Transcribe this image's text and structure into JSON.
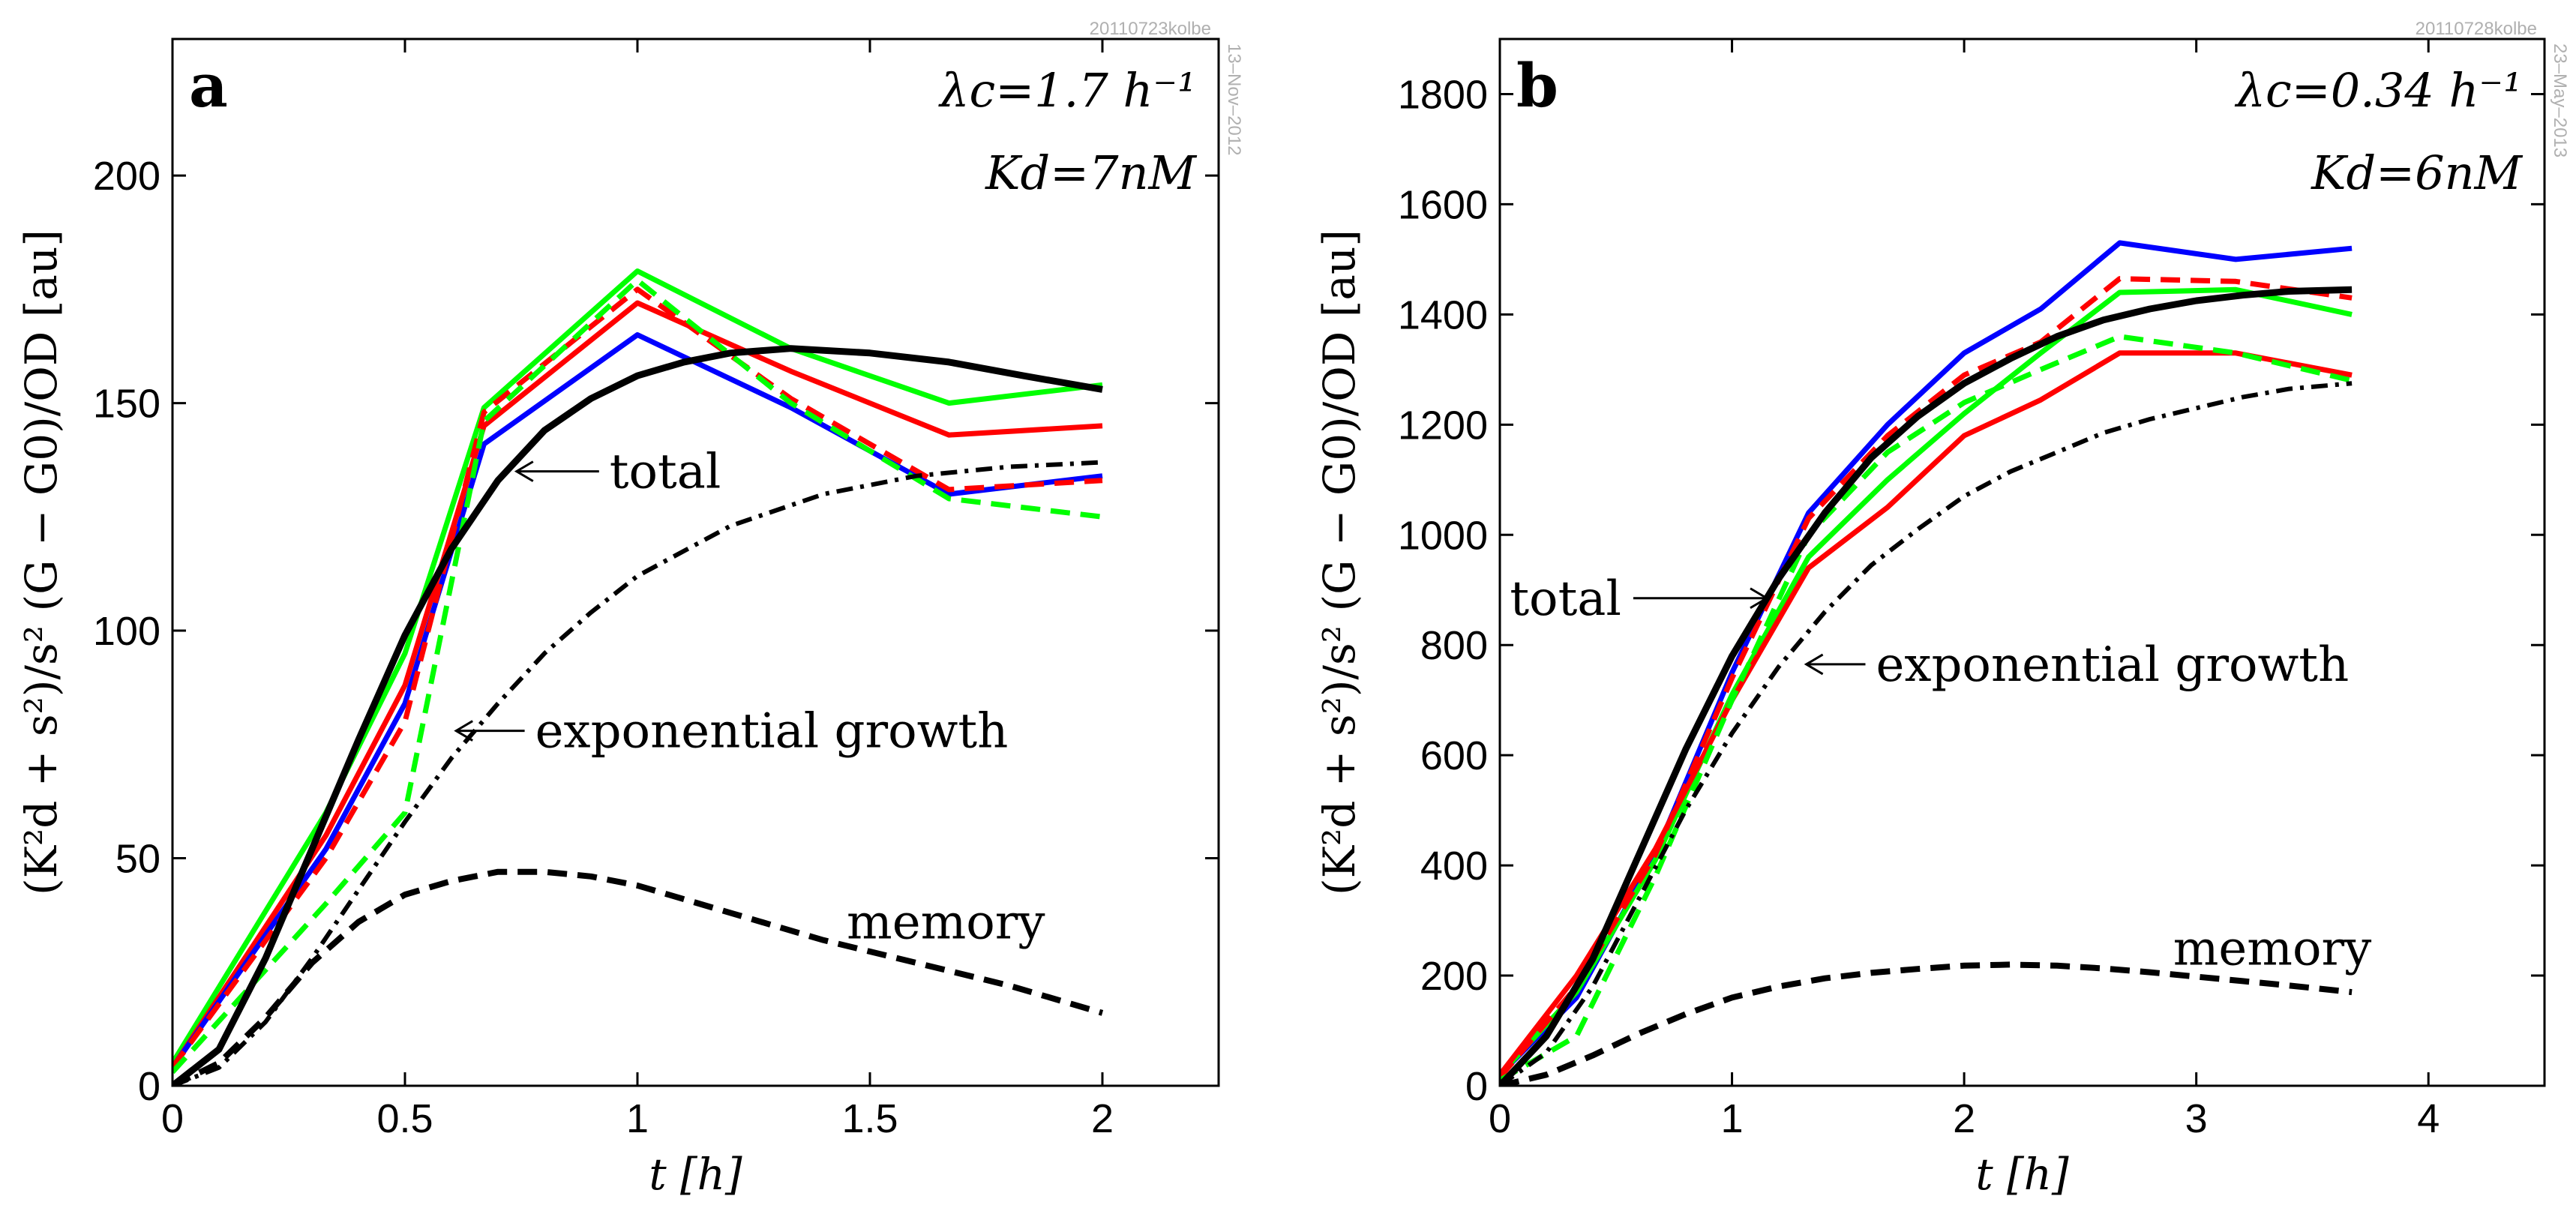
{
  "chart_data": [
    {
      "type": "line",
      "panel_label": "a",
      "params": {
        "lambda_c": "λc=1.7 h⁻¹",
        "Kd": "Kd=7nM"
      },
      "stamp_top": "20110723kolbe",
      "stamp_side": "13–Nov–2012",
      "xlabel": "t [h]",
      "ylabel": "(K²d + s²)/s²   (G − G0)/OD [au]",
      "xlim": [
        0,
        2.25
      ],
      "ylim": [
        0,
        230
      ],
      "xticks": [
        0,
        0.5,
        1,
        1.5,
        2
      ],
      "xtick_labels": [
        "0",
        "0.5",
        "1",
        "1.5",
        "2"
      ],
      "yticks": [
        0,
        50,
        100,
        150,
        200
      ],
      "ytick_labels": [
        "0",
        "50",
        "100",
        "150",
        "200"
      ],
      "series": [
        {
          "color": "#00ff00",
          "dash": "solid",
          "width": 7,
          "x": [
            0,
            0.33,
            0.5,
            0.67,
            1.0,
            1.33,
            1.67,
            2.0
          ],
          "y": [
            5,
            60,
            95,
            149,
            179,
            162,
            150,
            154
          ]
        },
        {
          "color": "#ff0000",
          "dash": "solid",
          "width": 7,
          "x": [
            0,
            0.33,
            0.5,
            0.67,
            1.0,
            1.33,
            1.67,
            2.0
          ],
          "y": [
            4,
            55,
            88,
            145,
            172,
            157,
            143,
            145
          ]
        },
        {
          "color": "#0000ff",
          "dash": "solid",
          "width": 7,
          "x": [
            0,
            0.33,
            0.5,
            0.67,
            1.0,
            1.33,
            1.67,
            2.0
          ],
          "y": [
            4,
            52,
            84,
            141,
            165,
            149,
            130,
            134
          ]
        },
        {
          "color": "#ff0000",
          "dash": "dashed",
          "width": 7,
          "x": [
            0,
            0.33,
            0.5,
            0.67,
            1.0,
            1.33,
            1.67,
            2.0
          ],
          "y": [
            4,
            50,
            80,
            148,
            175,
            151,
            131,
            133
          ]
        },
        {
          "color": "#00ff00",
          "dash": "dashed",
          "width": 7,
          "x": [
            0,
            0.33,
            0.5,
            0.67,
            1.0,
            1.33,
            1.67,
            2.0
          ],
          "y": [
            3,
            40,
            60,
            146,
            177,
            150,
            129,
            125
          ]
        },
        {
          "color": "#000000",
          "dash": "solid",
          "width": 9,
          "x": [
            0,
            0.1,
            0.2,
            0.3,
            0.4,
            0.5,
            0.6,
            0.7,
            0.8,
            0.9,
            1.0,
            1.1,
            1.2,
            1.33,
            1.5,
            1.67,
            1.83,
            2.0
          ],
          "y": [
            0,
            8,
            28,
            52,
            76,
            99,
            118,
            133,
            144,
            151,
            156,
            159,
            161,
            162,
            161,
            159,
            156,
            153
          ]
        },
        {
          "color": "#000000",
          "dash": "dashdot",
          "width": 6,
          "x": [
            0,
            0.1,
            0.2,
            0.3,
            0.4,
            0.5,
            0.6,
            0.7,
            0.8,
            0.9,
            1.0,
            1.2,
            1.4,
            1.6,
            1.8,
            2.0
          ],
          "y": [
            0,
            4,
            14,
            28,
            43,
            58,
            72,
            84,
            95,
            104,
            112,
            123,
            130,
            134,
            136,
            137
          ]
        },
        {
          "color": "#000000",
          "dash": "dashed",
          "width": 8,
          "x": [
            0,
            0.1,
            0.2,
            0.3,
            0.4,
            0.5,
            0.6,
            0.7,
            0.8,
            0.9,
            1.0,
            1.2,
            1.4,
            1.6,
            1.8,
            2.0
          ],
          "y": [
            0,
            5,
            15,
            27,
            36,
            42,
            45,
            47,
            47,
            46,
            44,
            38,
            32,
            27,
            22,
            16
          ]
        }
      ],
      "annotations": [
        {
          "text": "total",
          "x": 0.94,
          "y": 135,
          "arrow_to": [
            0.74,
            135
          ]
        },
        {
          "text": "exponential growth",
          "x": 0.78,
          "y": 78,
          "arrow_to": [
            0.61,
            78
          ]
        },
        {
          "text": "memory",
          "x": 1.45,
          "y": 36
        }
      ]
    },
    {
      "type": "line",
      "panel_label": "b",
      "params": {
        "lambda_c": "λc=0.34 h⁻¹",
        "Kd": "Kd=6nM"
      },
      "stamp_top": "20110728kolbe",
      "stamp_side": "23–May–2013",
      "xlabel": "t [h]",
      "ylabel": "(K²d + s²)/s²   (G − G0)/OD [au]",
      "xlim": [
        0,
        4.5
      ],
      "ylim": [
        0,
        1900
      ],
      "xticks": [
        0,
        1,
        2,
        3,
        4
      ],
      "xtick_labels": [
        "0",
        "1",
        "2",
        "3",
        "4"
      ],
      "yticks": [
        0,
        200,
        400,
        600,
        800,
        1000,
        1200,
        1400,
        1600,
        1800
      ],
      "ytick_labels": [
        "0",
        "200",
        "400",
        "600",
        "800",
        "1000",
        "1200",
        "1400",
        "1600",
        "1800"
      ],
      "series": [
        {
          "color": "#0000ff",
          "dash": "solid",
          "width": 7,
          "x": [
            0,
            0.33,
            0.67,
            1.0,
            1.33,
            1.67,
            2.0,
            2.33,
            2.67,
            3.17,
            3.67
          ],
          "y": [
            20,
            160,
            420,
            750,
            1040,
            1200,
            1330,
            1410,
            1530,
            1500,
            1520
          ]
        },
        {
          "color": "#00ff00",
          "dash": "solid",
          "width": 7,
          "x": [
            0,
            0.33,
            0.67,
            1.0,
            1.33,
            1.67,
            2.0,
            2.33,
            2.67,
            3.17,
            3.67
          ],
          "y": [
            20,
            170,
            410,
            710,
            960,
            1100,
            1220,
            1330,
            1440,
            1445,
            1400
          ]
        },
        {
          "color": "#ff0000",
          "dash": "solid",
          "width": 7,
          "x": [
            0,
            0.33,
            0.67,
            1.0,
            1.33,
            1.67,
            2.0,
            2.33,
            2.67,
            3.17,
            3.67
          ],
          "y": [
            20,
            200,
            430,
            700,
            940,
            1050,
            1180,
            1245,
            1330,
            1330,
            1290
          ]
        },
        {
          "color": "#ff0000",
          "dash": "dashed",
          "width": 7,
          "x": [
            0,
            0.33,
            0.67,
            1.0,
            1.33,
            1.67,
            2.0,
            2.33,
            2.67,
            3.17,
            3.67
          ],
          "y": [
            15,
            180,
            420,
            740,
            1030,
            1180,
            1290,
            1350,
            1465,
            1460,
            1430
          ]
        },
        {
          "color": "#00ff00",
          "dash": "dashed",
          "width": 7,
          "x": [
            0,
            0.33,
            0.67,
            1.0,
            1.33,
            1.67,
            2.0,
            2.33,
            2.67,
            3.17,
            3.67
          ],
          "y": [
            10,
            90,
            380,
            700,
            1000,
            1150,
            1240,
            1300,
            1360,
            1330,
            1280
          ]
        },
        {
          "color": "#000000",
          "dash": "solid",
          "width": 9,
          "x": [
            0,
            0.2,
            0.4,
            0.6,
            0.8,
            1.0,
            1.2,
            1.4,
            1.6,
            1.8,
            2.0,
            2.2,
            2.4,
            2.6,
            2.8,
            3.0,
            3.2,
            3.4,
            3.67
          ],
          "y": [
            0,
            90,
            230,
            420,
            610,
            780,
            920,
            1040,
            1140,
            1215,
            1275,
            1320,
            1360,
            1390,
            1410,
            1425,
            1435,
            1442,
            1445
          ]
        },
        {
          "color": "#000000",
          "dash": "dashdot",
          "width": 6,
          "x": [
            0,
            0.2,
            0.4,
            0.6,
            0.8,
            1.0,
            1.2,
            1.4,
            1.6,
            1.8,
            2.0,
            2.2,
            2.4,
            2.6,
            2.8,
            3.0,
            3.2,
            3.4,
            3.67
          ],
          "y": [
            0,
            60,
            180,
            340,
            500,
            640,
            760,
            860,
            945,
            1010,
            1070,
            1115,
            1150,
            1185,
            1210,
            1230,
            1250,
            1265,
            1275
          ]
        },
        {
          "color": "#000000",
          "dash": "dashed",
          "width": 8,
          "x": [
            0,
            0.2,
            0.4,
            0.6,
            0.8,
            1.0,
            1.2,
            1.4,
            1.6,
            1.8,
            2.0,
            2.2,
            2.4,
            2.6,
            2.8,
            3.0,
            3.2,
            3.4,
            3.67
          ],
          "y": [
            0,
            20,
            55,
            95,
            130,
            160,
            180,
            195,
            205,
            212,
            218,
            220,
            218,
            213,
            206,
            198,
            190,
            182,
            170
          ]
        }
      ],
      "annotations": [
        {
          "text": "total",
          "x": 0.62,
          "y": 885,
          "arrow_to": [
            1.15,
            885
          ]
        },
        {
          "text": "exponential growth",
          "x": 1.62,
          "y": 765,
          "arrow_to": [
            1.32,
            765
          ]
        },
        {
          "text": "memory",
          "x": 2.9,
          "y": 250
        }
      ]
    }
  ]
}
